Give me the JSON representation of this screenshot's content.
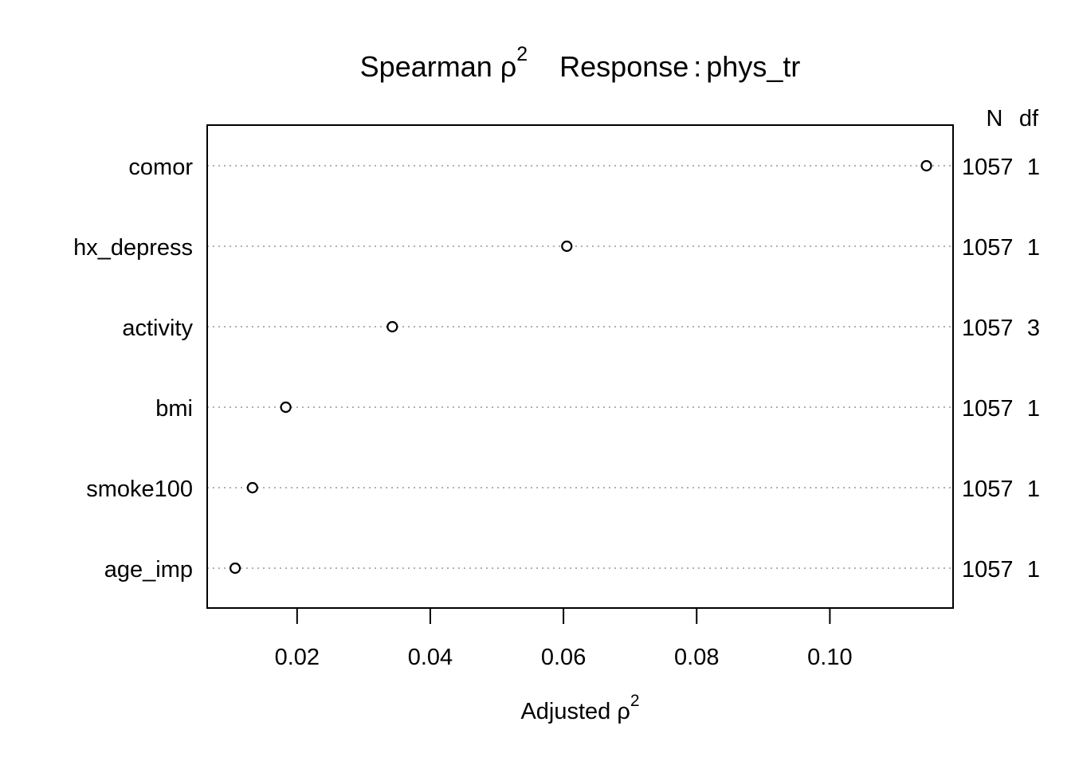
{
  "chart_data": {
    "type": "scatter",
    "title": {
      "prefix": "Spearman ",
      "rho": "ρ",
      "exponent": "2",
      "response_label": "Response",
      "separator": ":",
      "response_value": "phys_tr"
    },
    "xlabel": {
      "prefix": "Adjusted ",
      "rho": "ρ",
      "exponent": "2"
    },
    "right_header": {
      "n": "N",
      "df": "df"
    },
    "x_ticks": [
      "0.02",
      "0.04",
      "0.06",
      "0.08",
      "0.10"
    ],
    "x_tick_values": [
      0.02,
      0.04,
      0.06,
      0.08,
      0.1
    ],
    "xlim": [
      0.0065,
      0.1185
    ],
    "grid": "dotted horizontal reference lines",
    "categories": [
      "comor",
      "hx_depress",
      "activity",
      "bmi",
      "smoke100",
      "age_imp"
    ],
    "values": [
      0.1145,
      0.0605,
      0.0343,
      0.0183,
      0.0133,
      0.0107
    ],
    "n": [
      "1057",
      "1057",
      "1057",
      "1057",
      "1057",
      "1057"
    ],
    "df": [
      "1",
      "1",
      "3",
      "1",
      "1",
      "1"
    ]
  }
}
